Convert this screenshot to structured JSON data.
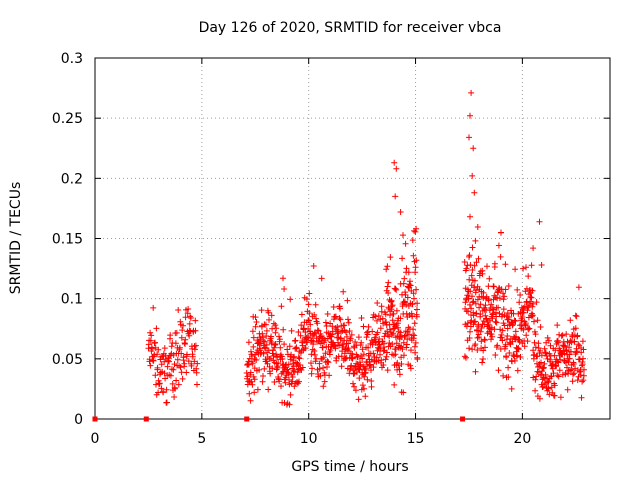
{
  "chart_data": {
    "type": "scatter",
    "title": "Day 126 of 2020, SRMTID for receiver vbca",
    "xlabel": "GPS time / hours",
    "ylabel": "SRMTID / TECUs",
    "xlim": [
      0,
      24.1
    ],
    "ylim": [
      0,
      0.3
    ],
    "grid": true,
    "x_ticks": [
      0,
      5,
      10,
      15,
      20
    ],
    "y_ticks": [
      0,
      0.05,
      0.1,
      0.15,
      0.2,
      0.25,
      0.3
    ],
    "x_tick_labels": [
      "0",
      "5",
      "10",
      "15",
      "20"
    ],
    "y_tick_labels": [
      "0",
      "0.05",
      "0.1",
      "0.15",
      "0.2",
      "0.25",
      "0.3"
    ],
    "series": [
      {
        "name": "SRMTID",
        "marker": "plus",
        "color": "#ff0000",
        "density_segments": [
          {
            "x_start": 2.5,
            "x_end": 4.8,
            "step_hours": 0.016,
            "base": 0.05,
            "spread": 0.05,
            "phase": 1
          },
          {
            "x_start": 7.1,
            "x_end": 9.8,
            "step_hours": 0.012,
            "base": 0.05,
            "spread": 0.05,
            "phase": 2
          },
          {
            "x_start": 9.8,
            "x_end": 11.5,
            "step_hours": 0.012,
            "base": 0.065,
            "spread": 0.05,
            "phase": 3
          },
          {
            "x_start": 11.5,
            "x_end": 13.6,
            "step_hours": 0.012,
            "base": 0.055,
            "spread": 0.05,
            "phase": 4
          },
          {
            "x_start": 13.6,
            "x_end": 15.1,
            "step_hours": 0.009,
            "base": 0.085,
            "spread": 0.085,
            "phase": 5
          },
          {
            "x_start": 17.3,
            "x_end": 18.2,
            "step_hours": 0.009,
            "base": 0.1,
            "spread": 0.09,
            "phase": 6
          },
          {
            "x_start": 18.2,
            "x_end": 20.5,
            "step_hours": 0.011,
            "base": 0.08,
            "spread": 0.065,
            "phase": 7
          },
          {
            "x_start": 20.5,
            "x_end": 22.9,
            "step_hours": 0.012,
            "base": 0.05,
            "spread": 0.05,
            "phase": 8
          }
        ],
        "outliers": [
          {
            "x": 8.8,
            "y": 0.117
          },
          {
            "x": 8.85,
            "y": 0.108
          },
          {
            "x": 14.0,
            "y": 0.213
          },
          {
            "x": 14.1,
            "y": 0.208
          },
          {
            "x": 14.05,
            "y": 0.185
          },
          {
            "x": 14.3,
            "y": 0.172
          },
          {
            "x": 17.6,
            "y": 0.271
          },
          {
            "x": 17.55,
            "y": 0.252
          },
          {
            "x": 17.5,
            "y": 0.234
          },
          {
            "x": 17.7,
            "y": 0.225
          },
          {
            "x": 17.65,
            "y": 0.202
          },
          {
            "x": 17.75,
            "y": 0.188
          },
          {
            "x": 17.55,
            "y": 0.168
          },
          {
            "x": 17.8,
            "y": 0.148
          },
          {
            "x": 19.0,
            "y": 0.155
          },
          {
            "x": 20.8,
            "y": 0.164
          },
          {
            "x": 20.5,
            "y": 0.142
          },
          {
            "x": 20.9,
            "y": 0.128
          },
          {
            "x": 19.5,
            "y": 0.025
          },
          {
            "x": 21.8,
            "y": 0.018
          }
        ],
        "zero_markers": [
          0.0,
          2.4,
          7.1,
          17.2
        ]
      }
    ]
  }
}
